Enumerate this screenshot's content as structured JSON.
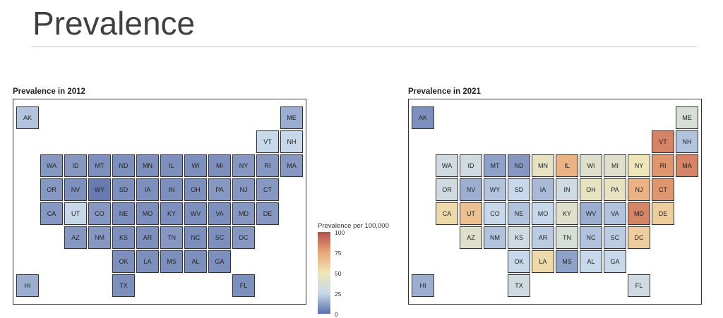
{
  "slide": {
    "title": "Prevalence"
  },
  "legend": {
    "title": "Prevalence per 100,000",
    "ticks": [
      "100",
      "75",
      "50",
      "25",
      "0"
    ],
    "colors": [
      "#5a6ea8",
      "#c7d8ea",
      "#efe6b8",
      "#eaa676",
      "#b5524b"
    ]
  },
  "chart_data": [
    {
      "type": "map",
      "title": "Prevalence in 2012",
      "values": {
        "WA": 10,
        "OR": 10,
        "CA": 10,
        "NV": 8,
        "ID": 10,
        "UT": 25,
        "AZ": 10,
        "MT": 8,
        "WY": 3,
        "CO": 10,
        "NM": 10,
        "ND": 8,
        "SD": 8,
        "NE": 8,
        "KS": 8,
        "OK": 8,
        "TX": 8,
        "MN": 8,
        "IA": 8,
        "MO": 8,
        "AR": 8,
        "LA": 8,
        "WI": 8,
        "IL": 8,
        "MS": 8,
        "MI": 8,
        "IN": 8,
        "KY": 8,
        "TN": 10,
        "AL": 8,
        "OH": 8,
        "WV": 8,
        "GA": 8,
        "FL": 8,
        "SC": 8,
        "NC": 8,
        "VA": 8,
        "PA": 10,
        "NY": 10,
        "VT": 25,
        "NH": 25,
        "ME": 15,
        "MA": 10,
        "RI": 10,
        "CT": 10,
        "NJ": 10,
        "DE": 10,
        "MD": 10,
        "DC": 10,
        "AK": 20,
        "HI": 15
      }
    },
    {
      "type": "map",
      "title": "Prevalence in 2021",
      "values": {
        "WA": 30,
        "OR": 30,
        "CA": 55,
        "NV": 15,
        "ID": 30,
        "UT": 65,
        "AZ": 40,
        "MT": 12,
        "WY": 20,
        "CO": 25,
        "NM": 20,
        "ND": 10,
        "SD": 25,
        "NE": 20,
        "KS": 30,
        "OK": 25,
        "TX": 30,
        "MN": 45,
        "IA": 18,
        "MO": 25,
        "AR": 22,
        "LA": 55,
        "WI": 40,
        "IL": 70,
        "MS": 12,
        "MI": 40,
        "IN": 30,
        "KY": 40,
        "TN": 35,
        "AL": 25,
        "OH": 45,
        "WV": 15,
        "GA": 25,
        "FL": 30,
        "SC": 22,
        "NC": 20,
        "VA": 20,
        "PA": 45,
        "NY": 50,
        "VT": 85,
        "NH": 20,
        "ME": 35,
        "MA": 85,
        "RI": 80,
        "CT": 80,
        "NJ": 70,
        "DE": 60,
        "MD": 85,
        "DC": 60,
        "AK": 8,
        "HI": 15
      }
    }
  ]
}
